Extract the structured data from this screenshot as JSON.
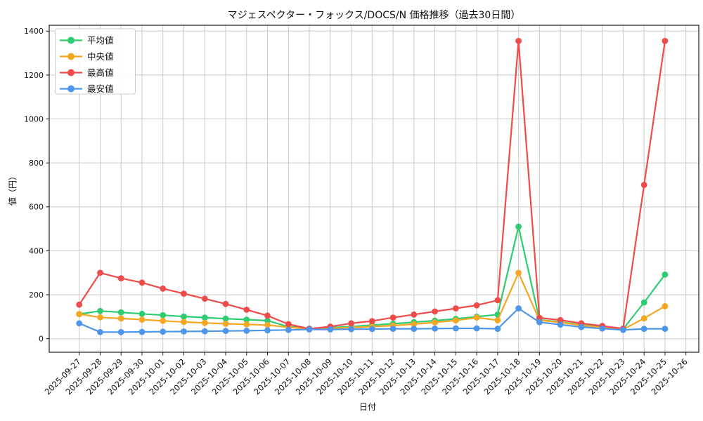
{
  "chart_data": {
    "type": "line",
    "title": "マジェスペクター・フォックス/DOCS/N 価格推移（過去30日間）",
    "xlabel": "日付",
    "ylabel": "値（円）",
    "x": [
      "2025-09-27",
      "2025-09-28",
      "2025-09-29",
      "2025-09-30",
      "2025-10-01",
      "2025-10-02",
      "2025-10-03",
      "2025-10-04",
      "2025-10-05",
      "2025-10-06",
      "2025-10-07",
      "2025-10-08",
      "2025-10-09",
      "2025-10-10",
      "2025-10-11",
      "2025-10-12",
      "2025-10-13",
      "2025-10-14",
      "2025-10-15",
      "2025-10-16",
      "2025-10-17",
      "2025-10-18",
      "2025-10-19",
      "2025-10-20",
      "2025-10-21",
      "2025-10-22",
      "2025-10-23",
      "2025-10-24",
      "2025-10-25",
      "2025-10-26"
    ],
    "series": [
      {
        "name": "平均値",
        "color": "#2ecc71",
        "values": [
          112,
          126,
          120,
          113,
          107,
          101,
          96,
          91,
          87,
          82,
          55,
          46,
          50,
          55,
          62,
          68,
          75,
          82,
          90,
          100,
          110,
          510,
          86,
          76,
          63,
          52,
          44,
          165,
          292,
          null
        ]
      },
      {
        "name": "中央値",
        "color": "#f5a623",
        "values": [
          112,
          97,
          92,
          87,
          81,
          76,
          72,
          68,
          65,
          62,
          52,
          44,
          47,
          51,
          55,
          60,
          66,
          74,
          83,
          96,
          84,
          300,
          84,
          74,
          61,
          50,
          42,
          93,
          148,
          null
        ]
      },
      {
        "name": "最高値",
        "color": "#ef4b4b",
        "values": [
          155,
          300,
          275,
          255,
          228,
          205,
          182,
          158,
          132,
          105,
          66,
          45,
          55,
          70,
          80,
          96,
          110,
          124,
          138,
          152,
          175,
          1355,
          95,
          85,
          70,
          58,
          46,
          700,
          1355,
          null
        ]
      },
      {
        "name": "最安値",
        "color": "#4d96ea",
        "values": [
          70,
          30,
          30,
          31,
          32,
          33,
          34,
          35,
          36,
          38,
          40,
          42,
          42,
          43,
          44,
          45,
          45,
          46,
          47,
          47,
          45,
          138,
          75,
          64,
          53,
          46,
          40,
          45,
          45,
          null
        ]
      }
    ],
    "yticks": [
      0,
      200,
      400,
      600,
      800,
      1000,
      1200,
      1400
    ],
    "ylim": [
      -60,
      1425
    ],
    "grid": true,
    "legend_position": "upper-left",
    "grid_color": "#c9c9c9",
    "spine_color": "#1a1a1a",
    "background_color": "#ffffff"
  }
}
